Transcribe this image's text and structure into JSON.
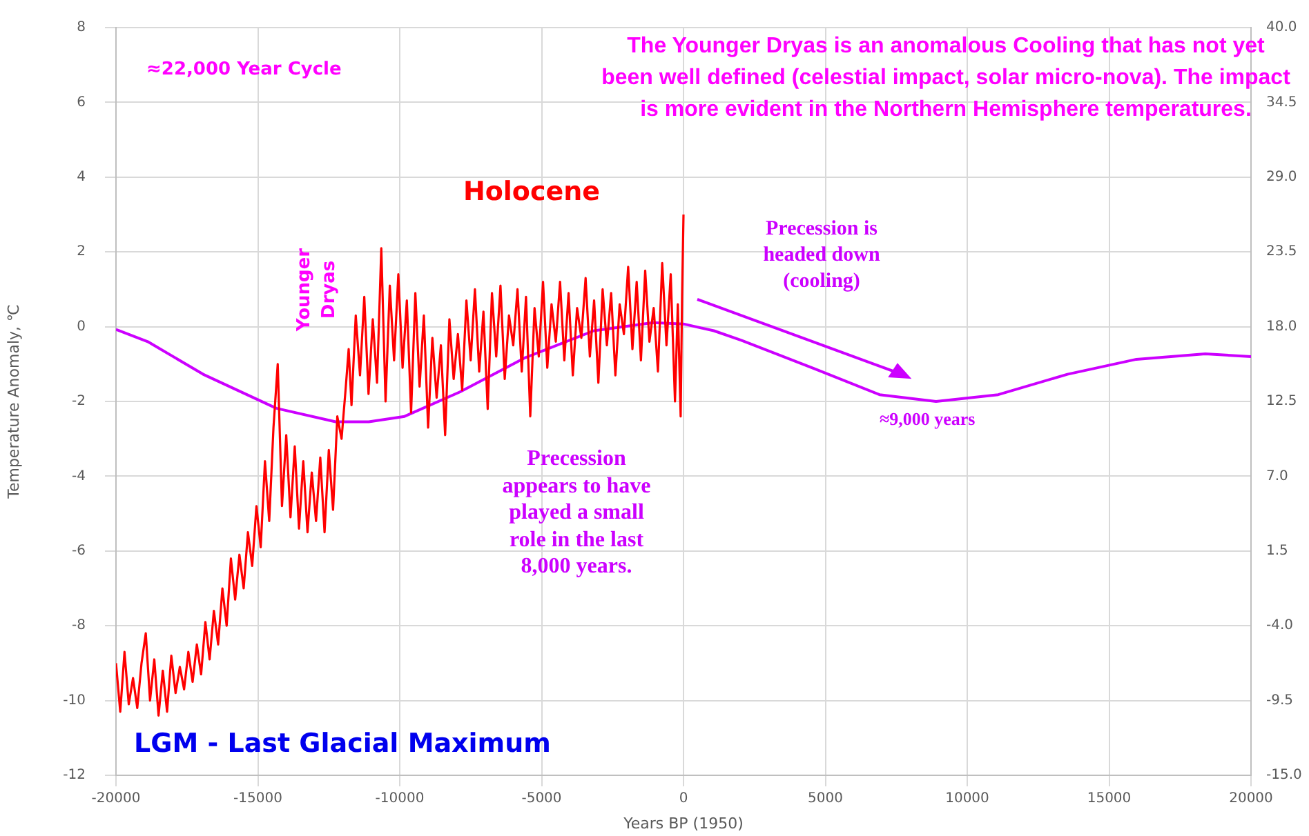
{
  "chart_data": {
    "type": "line",
    "xlabel": "Years BP (1950)",
    "ylabel": "Temperature Anomaly, ℃",
    "xlim": [
      -20000,
      20000
    ],
    "xticks": [
      -20000,
      -15000,
      -10000,
      -5000,
      0,
      5000,
      10000,
      15000,
      20000
    ],
    "ylim": [
      -12,
      8
    ],
    "yticks": [
      -12,
      -10,
      -8,
      -6,
      -4,
      -2,
      0,
      2,
      4,
      6,
      8
    ],
    "y2lim": [
      -15,
      40
    ],
    "y2ticks": [
      {
        "value": -15,
        "label": "-15.0"
      },
      -9.5,
      {
        "value": -4,
        "label": "-4.0"
      },
      1.5,
      {
        "value": 7,
        "label": "7.0"
      },
      12.5,
      {
        "value": 18,
        "label": "18.0"
      },
      23.5,
      {
        "value": 29,
        "label": "29.0"
      },
      34.5,
      {
        "value": 40,
        "label": "40.0"
      }
    ],
    "grid": true,
    "marker": "none",
    "series": [
      {
        "color": "#ff0000",
        "x": [
          -20000,
          -19850,
          -19700,
          -19550,
          -19400,
          -19250,
          -19100,
          -18950,
          -18800,
          -18650,
          -18500,
          -18350,
          -18200,
          -18050,
          -17900,
          -17750,
          -17600,
          -17450,
          -17300,
          -17150,
          -17000,
          -16850,
          -16700,
          -16550,
          -16400,
          -16250,
          -16100,
          -15950,
          -15800,
          -15650,
          -15500,
          -15350,
          -15200,
          -15050,
          -14900,
          -14750,
          -14600,
          -14450,
          -14300,
          -14150,
          -14000,
          -13850,
          -13700,
          -13550,
          -13400,
          -13250,
          -13100,
          -12950,
          -12800,
          -12650,
          -12500,
          -12350,
          -12200,
          -12050,
          -11900,
          -11800,
          -11700,
          -11550,
          -11400,
          -11250,
          -11100,
          -10950,
          -10800,
          -10650,
          -10500,
          -10350,
          -10200,
          -10050,
          -9900,
          -9750,
          -9600,
          -9450,
          -9300,
          -9150,
          -9000,
          -8850,
          -8700,
          -8550,
          -8400,
          -8250,
          -8100,
          -7950,
          -7800,
          -7650,
          -7500,
          -7350,
          -7200,
          -7050,
          -6900,
          -6750,
          -6600,
          -6450,
          -6300,
          -6150,
          -6000,
          -5850,
          -5700,
          -5550,
          -5400,
          -5250,
          -5100,
          -4950,
          -4800,
          -4650,
          -4500,
          -4350,
          -4200,
          -4050,
          -3900,
          -3750,
          -3600,
          -3450,
          -3300,
          -3150,
          -3000,
          -2850,
          -2700,
          -2550,
          -2400,
          -2250,
          -2100,
          -1950,
          -1800,
          -1650,
          -1500,
          -1350,
          -1200,
          -1050,
          -900,
          -750,
          -600,
          -450,
          -300,
          -200,
          -100,
          -50,
          0
        ],
        "values": [
          -9.0,
          -10.3,
          -8.7,
          -10.1,
          -9.4,
          -10.2,
          -9.0,
          -8.2,
          -10.0,
          -8.9,
          -10.4,
          -9.2,
          -10.3,
          -8.8,
          -9.8,
          -9.1,
          -9.7,
          -8.7,
          -9.5,
          -8.5,
          -9.3,
          -7.9,
          -8.9,
          -7.6,
          -8.5,
          -7.0,
          -8.0,
          -6.2,
          -7.3,
          -6.1,
          -7.0,
          -5.5,
          -6.4,
          -4.8,
          -5.9,
          -3.6,
          -5.2,
          -2.7,
          -1.0,
          -4.8,
          -2.9,
          -5.1,
          -3.2,
          -5.4,
          -3.6,
          -5.5,
          -3.9,
          -5.2,
          -3.5,
          -5.5,
          -3.3,
          -4.9,
          -2.4,
          -3.0,
          -1.6,
          -0.6,
          -2.1,
          0.3,
          -1.3,
          0.8,
          -1.8,
          0.2,
          -1.5,
          2.1,
          -2.0,
          1.1,
          -0.9,
          1.4,
          -1.1,
          0.7,
          -2.3,
          0.9,
          -1.6,
          0.3,
          -2.7,
          -0.3,
          -1.9,
          -0.5,
          -2.9,
          0.2,
          -1.4,
          -0.2,
          -1.7,
          0.7,
          -0.9,
          1.0,
          -1.2,
          0.4,
          -2.2,
          0.9,
          -0.8,
          1.1,
          -1.4,
          0.3,
          -0.5,
          1.0,
          -1.2,
          0.8,
          -2.4,
          0.5,
          -0.8,
          1.2,
          -1.1,
          0.6,
          -0.4,
          1.2,
          -0.9,
          0.9,
          -1.3,
          0.5,
          -0.3,
          1.3,
          -0.8,
          0.7,
          -1.5,
          1.0,
          -0.5,
          0.9,
          -1.3,
          0.6,
          -0.2,
          1.6,
          -0.6,
          1.2,
          -0.9,
          1.5,
          -0.4,
          0.5,
          -1.2,
          1.7,
          -0.5,
          1.4,
          -2.0,
          0.6,
          -2.4,
          0.8,
          3.0
        ]
      },
      {
        "color": "#cc00ff",
        "axis": "y2",
        "x": [
          -20000,
          -18880,
          -16930,
          -14350,
          -12260,
          -11090,
          -9830,
          -7880,
          -5600,
          -3160,
          -1070,
          0,
          1070,
          2040,
          4620,
          6910,
          8900,
          11090,
          13530,
          15960,
          18390,
          20000
        ],
        "values": [
          17.8,
          16.9,
          14.5,
          12.0,
          11.0,
          11.0,
          11.4,
          13.2,
          15.7,
          17.7,
          18.3,
          18.2,
          17.7,
          17.0,
          14.9,
          13.0,
          12.5,
          13.0,
          14.5,
          15.6,
          16.0,
          15.8
        ]
      }
    ],
    "annotations": [
      "≈22,000 Year Cycle",
      "The Younger Dryas is an anomalous Cooling that has not yet been well defined (celestial impact, solar micro-nova). The impact is more evident in the Northern Hemisphere temperatures.",
      "Holocene",
      "Younger Dryas",
      "Precession is headed down (cooling)",
      "≈9,000 years",
      "Precession appears to have played a small role in the last 8,000 years.",
      "LGM - Last Glacial Maximum"
    ]
  }
}
